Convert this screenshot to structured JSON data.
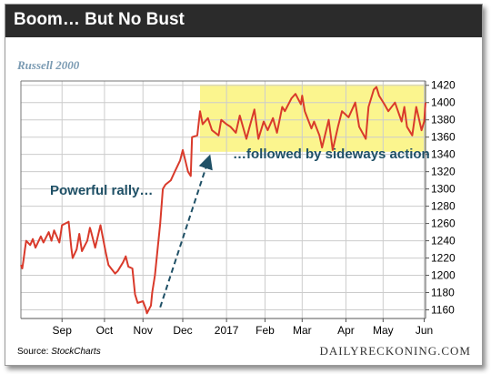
{
  "header": {
    "title": "Boom… But No Bust"
  },
  "brand": "DAILYRECKONING.COM",
  "source": {
    "prefix": "Source: ",
    "name": "StockCharts"
  },
  "colors": {
    "line": "#d93a2b",
    "highlight": "#fbf58e",
    "arrow": "#1f5066",
    "annotation": "#1f5066",
    "grid": "#cccccc"
  },
  "chart_data": {
    "type": "line",
    "title": "Russell 2000",
    "xlabel": "",
    "ylabel": "",
    "ylim": [
      1150,
      1425
    ],
    "yticks": [
      1160,
      1180,
      1200,
      1220,
      1240,
      1260,
      1280,
      1300,
      1320,
      1340,
      1360,
      1380,
      1400,
      1420
    ],
    "x_tick_labels": [
      "Sep",
      "Oct",
      "Nov",
      "Dec",
      "2017",
      "Feb",
      "Mar",
      "Apr",
      "May",
      "Jun"
    ],
    "x_tick_dates": [
      "2016-09-01",
      "2016-10-03",
      "2016-11-01",
      "2016-12-01",
      "2017-01-03",
      "2017-02-01",
      "2017-03-01",
      "2017-04-03",
      "2017-05-01",
      "2017-06-01"
    ],
    "grid": true,
    "y_axis_position": "right",
    "series": [
      {
        "x": [
          "2016-08-01",
          "2016-08-02",
          "2016-08-03",
          "2016-08-04",
          "2016-08-05",
          "2016-08-08",
          "2016-08-10",
          "2016-08-12",
          "2016-08-16",
          "2016-08-18",
          "2016-08-22",
          "2016-08-24",
          "2016-08-26",
          "2016-08-30",
          "2016-09-01",
          "2016-09-06",
          "2016-09-08",
          "2016-09-09",
          "2016-09-12",
          "2016-09-14",
          "2016-09-16",
          "2016-09-20",
          "2016-09-22",
          "2016-09-23",
          "2016-09-26",
          "2016-09-28",
          "2016-09-30",
          "2016-10-04",
          "2016-10-06",
          "2016-10-11",
          "2016-10-13",
          "2016-10-17",
          "2016-10-19",
          "2016-10-21",
          "2016-10-24",
          "2016-10-26",
          "2016-10-28",
          "2016-11-01",
          "2016-11-03",
          "2016-11-04",
          "2016-11-07",
          "2016-11-08",
          "2016-11-09",
          "2016-11-10",
          "2016-11-14",
          "2016-11-16",
          "2016-11-18",
          "2016-11-22",
          "2016-11-25",
          "2016-11-29",
          "2016-12-01",
          "2016-12-05",
          "2016-12-07",
          "2016-12-08",
          "2016-12-12",
          "2016-12-14",
          "2016-12-16",
          "2016-12-20",
          "2016-12-23",
          "2016-12-28",
          "2016-12-30",
          "2017-01-03",
          "2017-01-06",
          "2017-01-10",
          "2017-01-13",
          "2017-01-18",
          "2017-01-20",
          "2017-01-24",
          "2017-01-27",
          "2017-01-31",
          "2017-02-03",
          "2017-02-07",
          "2017-02-10",
          "2017-02-14",
          "2017-02-16",
          "2017-02-21",
          "2017-02-24",
          "2017-02-28",
          "2017-03-01",
          "2017-03-03",
          "2017-03-08",
          "2017-03-10",
          "2017-03-14",
          "2017-03-16",
          "2017-03-21",
          "2017-03-24",
          "2017-03-28",
          "2017-03-31",
          "2017-04-05",
          "2017-04-10",
          "2017-04-13",
          "2017-04-18",
          "2017-04-20",
          "2017-04-24",
          "2017-04-26",
          "2017-04-28",
          "2017-05-02",
          "2017-05-05",
          "2017-05-10",
          "2017-05-15",
          "2017-05-17",
          "2017-05-19",
          "2017-05-23",
          "2017-05-26",
          "2017-05-30",
          "2017-06-01",
          "2017-06-02"
        ],
        "values": [
          1212,
          1208,
          1218,
          1230,
          1240,
          1235,
          1242,
          1232,
          1245,
          1238,
          1250,
          1240,
          1252,
          1238,
          1258,
          1262,
          1232,
          1220,
          1230,
          1248,
          1228,
          1240,
          1255,
          1250,
          1232,
          1245,
          1258,
          1226,
          1212,
          1202,
          1205,
          1215,
          1222,
          1210,
          1208,
          1178,
          1168,
          1170,
          1162,
          1156,
          1165,
          1180,
          1190,
          1200,
          1260,
          1300,
          1305,
          1310,
          1320,
          1333,
          1345,
          1320,
          1315,
          1360,
          1362,
          1390,
          1375,
          1382,
          1368,
          1362,
          1380,
          1375,
          1372,
          1365,
          1385,
          1358,
          1370,
          1392,
          1358,
          1378,
          1368,
          1382,
          1365,
          1395,
          1390,
          1405,
          1410,
          1398,
          1408,
          1390,
          1370,
          1378,
          1362,
          1348,
          1380,
          1345,
          1372,
          1390,
          1383,
          1400,
          1372,
          1358,
          1395,
          1415,
          1418,
          1408,
          1398,
          1390,
          1400,
          1378,
          1395,
          1372,
          1362,
          1395,
          1368,
          1378,
          1400
        ]
      }
    ],
    "highlight_band": {
      "x_start": "2016-12-14",
      "x_end": "2017-06-02",
      "y_range": [
        1343,
        1421
      ]
    },
    "annotations": [
      {
        "text": "Powerful rally…"
      },
      {
        "text": "…followed by sideways action"
      }
    ]
  }
}
